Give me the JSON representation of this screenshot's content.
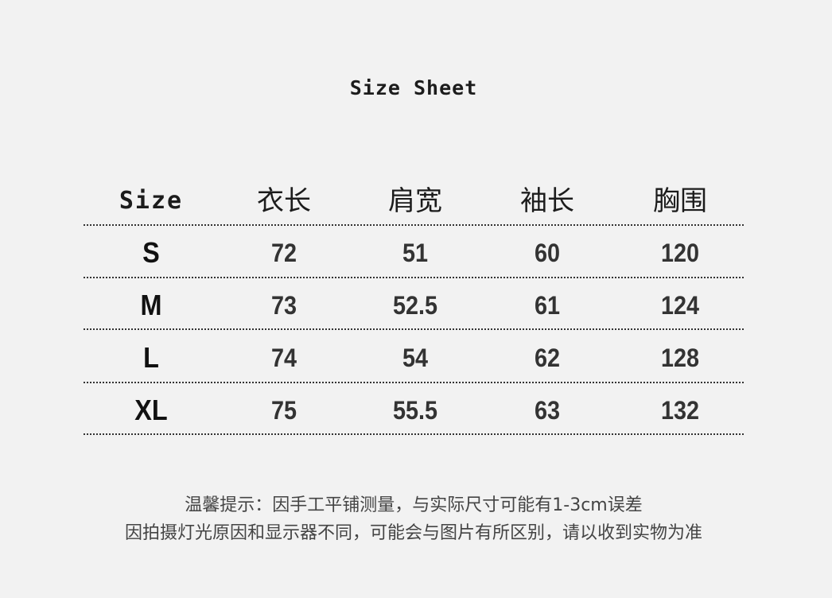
{
  "title": "Size Sheet",
  "table": {
    "headers": [
      "Size",
      "衣长",
      "肩宽",
      "袖长",
      "胸围"
    ],
    "rows": [
      [
        "S",
        "72",
        "51",
        "60",
        "120"
      ],
      [
        "M",
        "73",
        "52.5",
        "61",
        "124"
      ],
      [
        "L",
        "74",
        "54",
        "62",
        "128"
      ],
      [
        "XL",
        "75",
        "55.5",
        "63",
        "132"
      ]
    ]
  },
  "notes": [
    "温馨提示：因手工平铺测量，与实际尺寸可能有1-3cm误差",
    "因拍摄灯光原因和显示器不同，可能会与图片有所区别，请以收到实物为准"
  ]
}
